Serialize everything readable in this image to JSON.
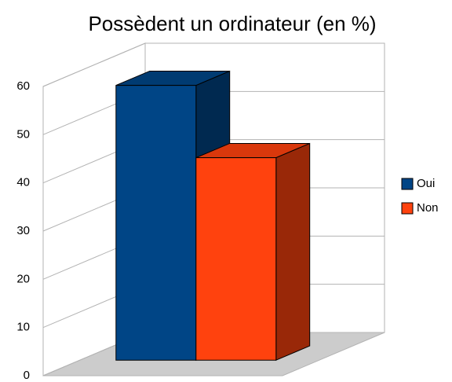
{
  "chart_data": {
    "type": "bar3d",
    "title": "Possèdent un ordinateur (en %)",
    "categories": [
      null
    ],
    "series": [
      {
        "name": "Oui",
        "color": "#004586",
        "values": [
          57
        ]
      },
      {
        "name": "Non",
        "color": "#ff420e",
        "values": [
          42
        ]
      }
    ],
    "ylim": [
      0,
      60
    ],
    "yticks": [
      0,
      10,
      20,
      30,
      40,
      50,
      60
    ],
    "grid": true,
    "legend": "right"
  }
}
